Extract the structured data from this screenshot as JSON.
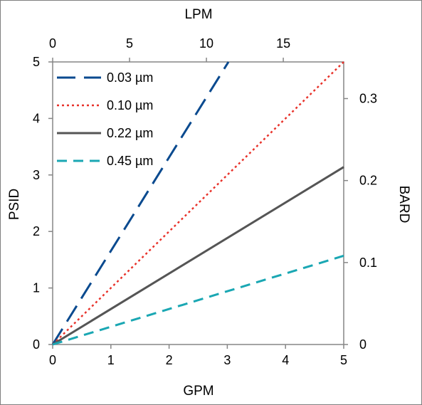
{
  "chart_data": {
    "type": "line",
    "title": "",
    "xlabel": "GPM",
    "ylabel": "PSID",
    "x2label": "LPM",
    "y2label": "BARD",
    "xlim": [
      0,
      5
    ],
    "ylim": [
      0,
      5
    ],
    "x2lim": [
      0,
      18.93
    ],
    "y2lim": [
      0,
      0.3447
    ],
    "xticks": [
      "0",
      "1",
      "2",
      "3",
      "4",
      "5"
    ],
    "yticks": [
      "0",
      "1",
      "2",
      "3",
      "4",
      "5"
    ],
    "x2ticks": [
      "0",
      "5",
      "10",
      "15"
    ],
    "y2ticks": [
      "0",
      "0.1",
      "0.2",
      "0.3"
    ],
    "grid": false,
    "legend_position": "top-left",
    "series": [
      {
        "name": "0.03 µm",
        "color": "#0a4a8f",
        "dash": "long-dash",
        "x": [
          0,
          3.02
        ],
        "y": [
          0,
          5
        ]
      },
      {
        "name": "0.10 µm",
        "color": "#e8322a",
        "dash": "dotted",
        "x": [
          0,
          5
        ],
        "y": [
          0,
          5
        ]
      },
      {
        "name": "0.22 µm",
        "color": "#555555",
        "dash": "solid",
        "x": [
          0,
          5
        ],
        "y": [
          0,
          3.14
        ]
      },
      {
        "name": "0.45 µm",
        "color": "#1aa7b3",
        "dash": "short-dash",
        "x": [
          0,
          5
        ],
        "y": [
          0,
          1.57
        ]
      }
    ]
  }
}
